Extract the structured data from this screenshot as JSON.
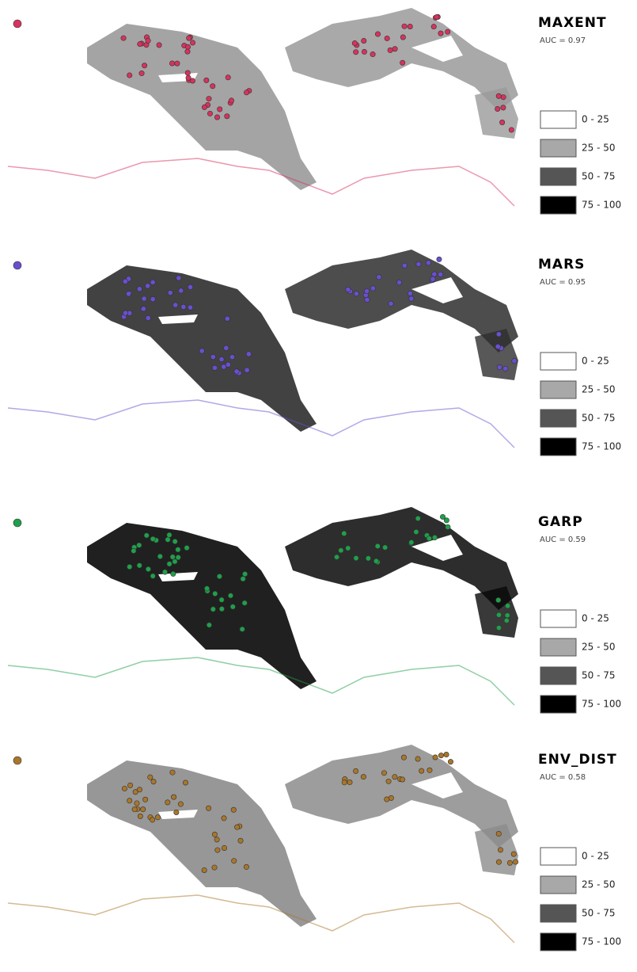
{
  "panels": [
    {
      "title": "MAXENT",
      "auc": "AUC = 0.97",
      "marker_color": "#d8325e",
      "map_fill": "#9a9a9a"
    },
    {
      "title": "MARS",
      "auc": "AUC = 0.95",
      "marker_color": "#6a4fd0",
      "map_fill": "#2e2e2e"
    },
    {
      "title": "GARP",
      "auc": "AUC = 0.59",
      "marker_color": "#1fa04a",
      "map_fill": "#080808"
    },
    {
      "title": "ENV_DIST",
      "auc": "AUC = 0.58",
      "marker_color": "#a9762a",
      "map_fill": "#8c8c8c"
    }
  ],
  "legend": [
    "0 - 25",
    "25 - 50",
    "50 - 75",
    "75 - 100"
  ]
}
